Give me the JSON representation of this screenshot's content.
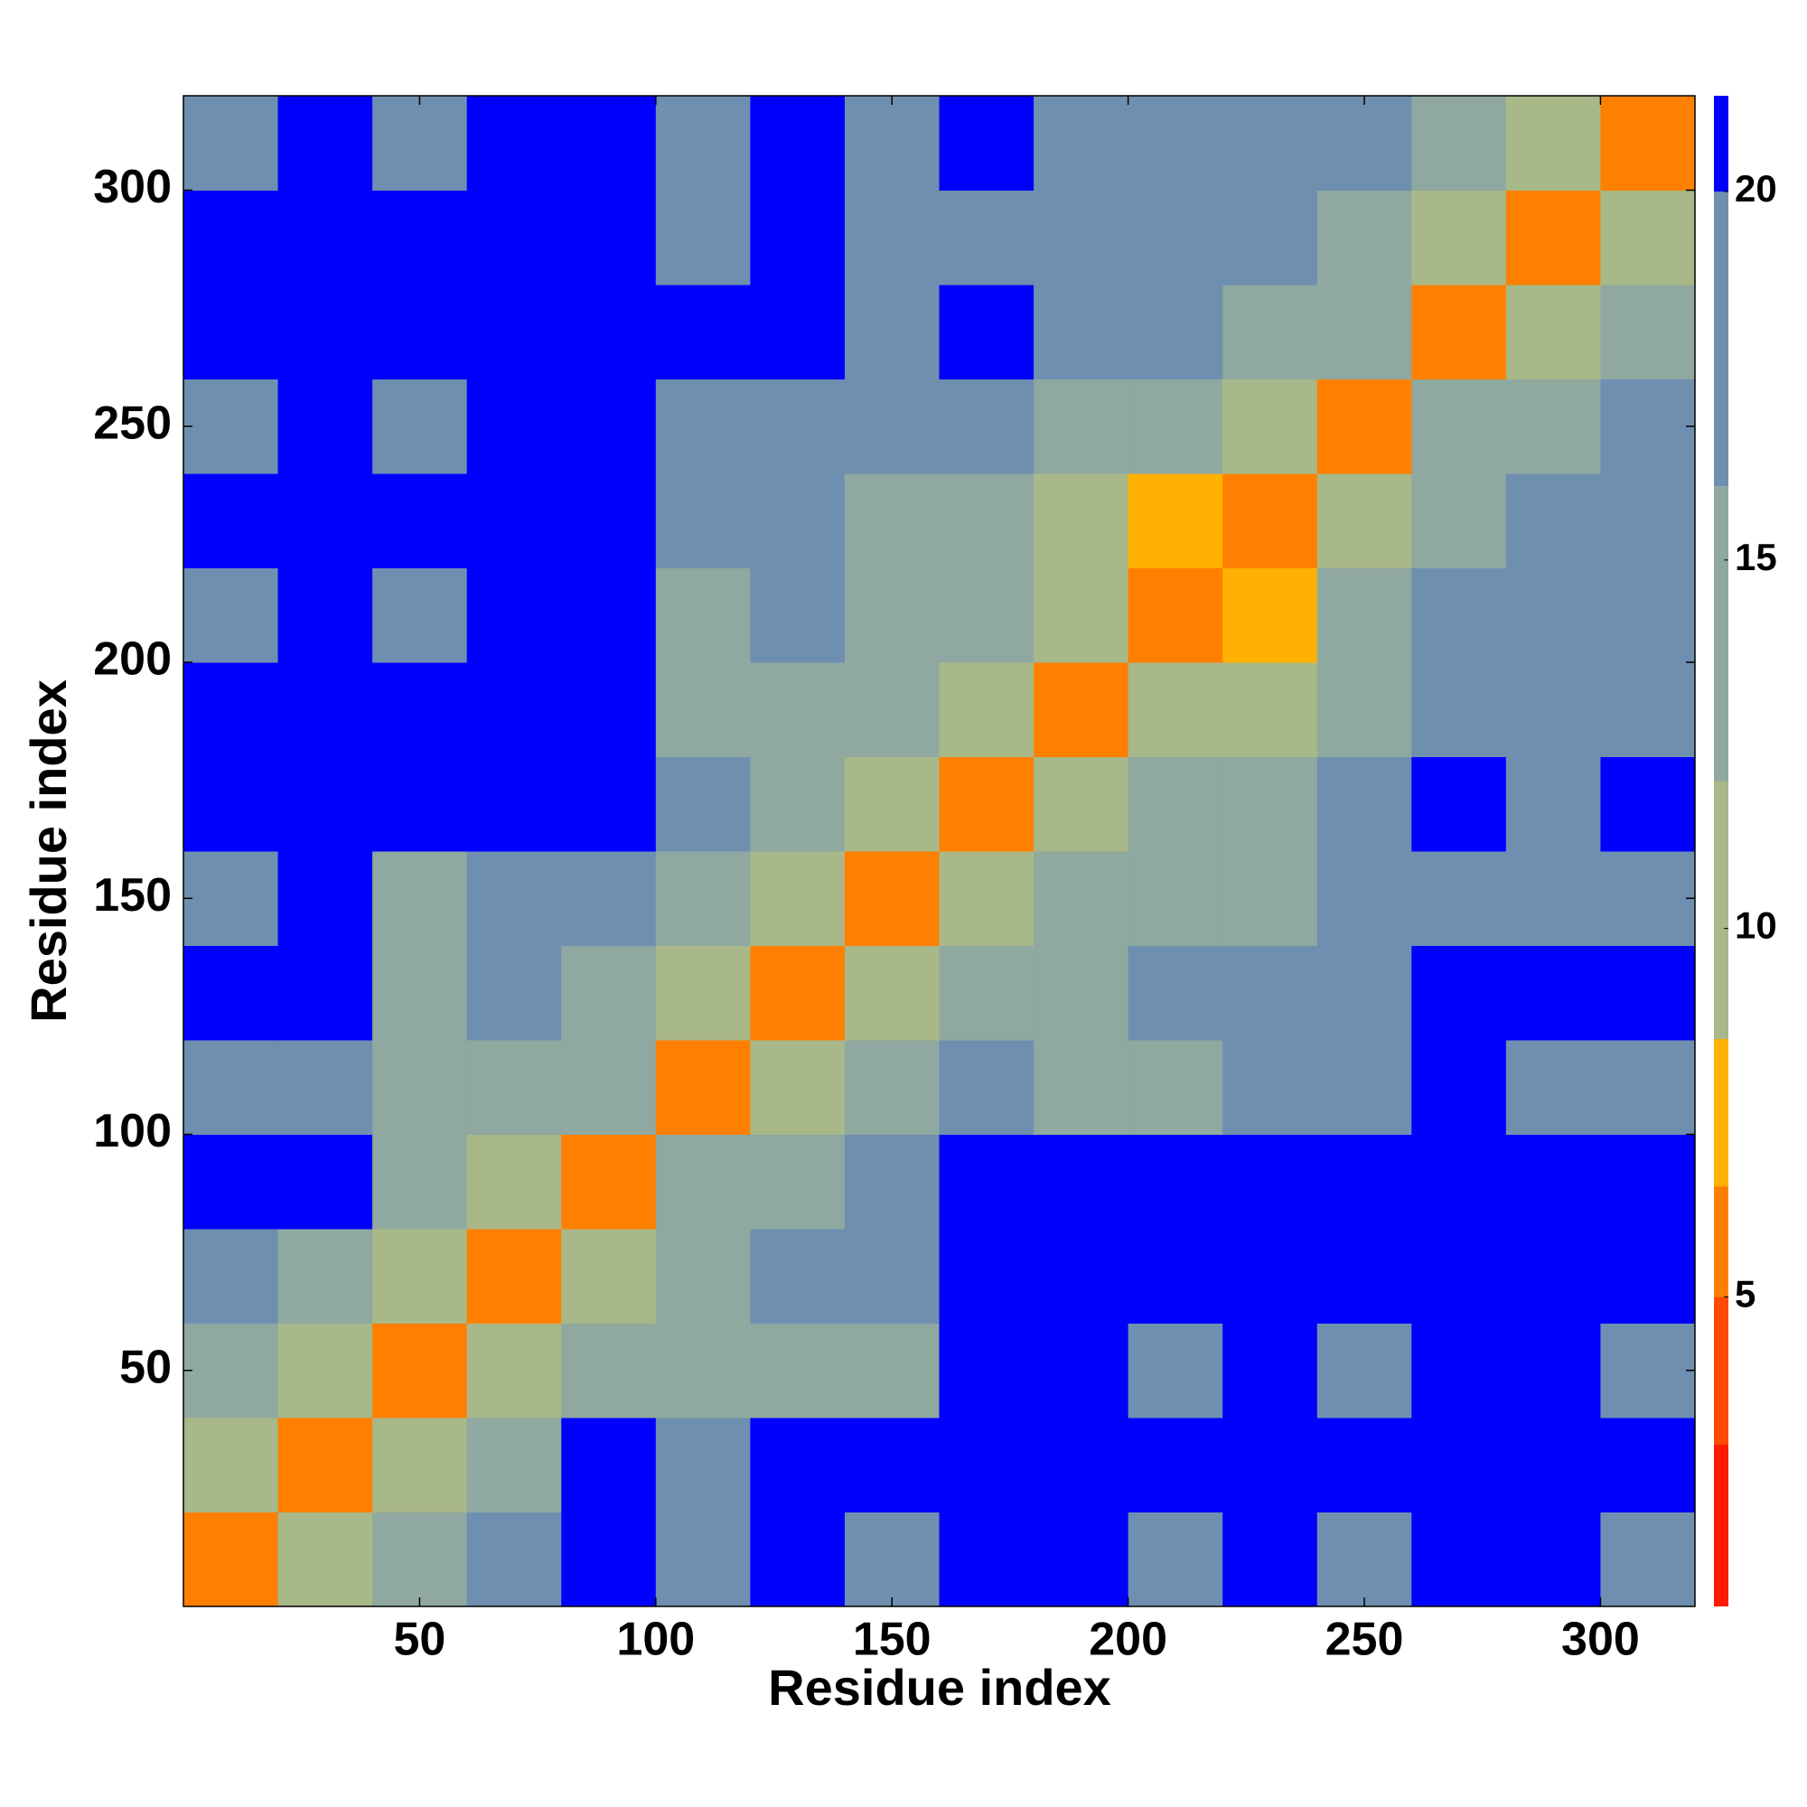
{
  "chart_data": {
    "type": "heatmap",
    "xlabel": "Residue index",
    "ylabel": "Residue index",
    "x": [
      10,
      30,
      50,
      70,
      90,
      110,
      130,
      150,
      170,
      190,
      210,
      230,
      250,
      270,
      290,
      310
    ],
    "y": [
      10,
      30,
      50,
      70,
      90,
      110,
      130,
      150,
      170,
      190,
      210,
      230,
      250,
      270,
      290,
      310
    ],
    "z": [
      [
        6,
        11,
        14,
        18,
        21,
        17,
        21,
        19,
        21,
        21,
        19,
        21,
        17,
        21,
        21,
        18
      ],
      [
        11,
        6,
        10,
        14,
        21,
        17,
        21,
        21,
        21,
        21,
        21,
        21,
        21,
        21,
        21,
        21
      ],
      [
        14,
        10,
        6,
        9,
        15,
        14,
        16,
        16,
        21,
        21,
        17,
        21,
        17,
        21,
        21,
        18
      ],
      [
        18,
        14,
        9,
        6,
        12,
        16,
        18,
        18,
        21,
        21,
        21,
        21,
        21,
        21,
        21,
        21
      ],
      [
        21,
        21,
        15,
        12,
        6,
        13,
        16,
        19,
        21,
        21,
        21,
        21,
        21,
        21,
        21,
        21
      ],
      [
        17,
        17,
        14,
        16,
        13,
        6,
        9,
        13,
        17,
        16,
        16,
        19,
        18,
        21,
        20,
        18
      ],
      [
        21,
        21,
        16,
        18,
        16,
        9,
        6,
        10,
        14,
        16,
        18,
        19,
        19,
        21,
        21,
        21
      ],
      [
        19,
        21,
        16,
        18,
        19,
        13,
        10,
        6,
        10,
        13,
        15,
        15,
        18,
        20,
        19,
        18
      ],
      [
        21,
        21,
        21,
        21,
        21,
        17,
        14,
        10,
        6,
        9,
        13,
        15,
        18,
        21,
        19,
        21
      ],
      [
        21,
        21,
        21,
        21,
        21,
        16,
        16,
        13,
        9,
        6,
        9,
        12,
        16,
        19,
        18,
        20
      ],
      [
        19,
        21,
        17,
        21,
        21,
        16,
        18,
        15,
        13,
        9,
        6,
        8,
        15,
        17,
        17,
        18
      ],
      [
        21,
        21,
        21,
        21,
        21,
        19,
        19,
        15,
        15,
        12,
        8,
        6,
        10,
        14,
        17,
        17
      ],
      [
        17,
        21,
        17,
        21,
        21,
        18,
        19,
        18,
        18,
        16,
        15,
        10,
        6,
        14,
        15,
        17
      ],
      [
        21,
        21,
        21,
        21,
        21,
        21,
        21,
        20,
        21,
        19,
        17,
        14,
        14,
        6,
        12,
        15
      ],
      [
        21,
        21,
        21,
        21,
        21,
        20,
        21,
        19,
        19,
        18,
        17,
        17,
        15,
        12,
        6,
        9
      ],
      [
        18,
        21,
        18,
        21,
        21,
        18,
        21,
        18,
        21,
        20,
        18,
        17,
        17,
        15,
        9,
        6
      ]
    ],
    "xlim": [
      0,
      320
    ],
    "ylim": [
      0,
      320
    ],
    "xticks": [
      50,
      100,
      150,
      200,
      250,
      300
    ],
    "yticks": [
      50,
      100,
      150,
      200,
      250,
      300
    ],
    "zlim": [
      0.8,
      21.3
    ],
    "zticks": [
      5,
      10,
      15,
      20
    ],
    "levels": [
      0.8,
      3,
      5,
      6.5,
      8.5,
      12,
      16,
      20,
      21.3
    ],
    "colors": [
      "#ff1a00",
      "#ff4a00",
      "#ff8000",
      "#ffb000",
      "#a8b888",
      "#8fa8a0",
      "#6f8fb0",
      "#0000ff"
    ]
  }
}
